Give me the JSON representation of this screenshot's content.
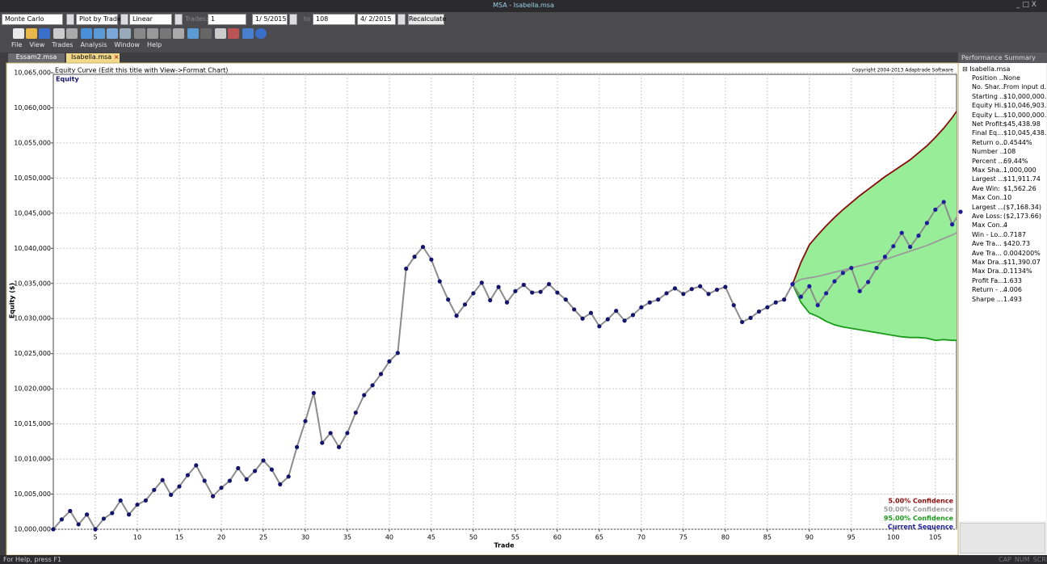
{
  "window": {
    "title": "MSA - Isabella.msa",
    "toolbar": {
      "mode": "Monte Carlo",
      "plot": "Plot by Trade",
      "scale": "Linear",
      "trades_label": "Trades:",
      "trades_from": "1",
      "date_from": "1/ 5/2015",
      "to_label": "to",
      "trades_to": "108",
      "date_to": "4/ 2/2015",
      "button": "Recalculate"
    },
    "menu": [
      "File",
      "View",
      "Trades",
      "Analysis",
      "Window",
      "Help"
    ],
    "tabs": [
      "Essam2.msa",
      "Isabella.msa"
    ]
  },
  "chart_data": {
    "type": "line",
    "title": "Equity Curve (Edit this title with View->Format Chart)",
    "copyright": "Copyright 2004-2013 Adaptrade Software",
    "xlabel": "Trade",
    "ylabel": "Equity ($)",
    "xlim": [
      0,
      108
    ],
    "ylim": [
      10000000,
      10065000
    ],
    "xticks": [
      5,
      10,
      15,
      20,
      25,
      30,
      35,
      40,
      45,
      50,
      55,
      60,
      65,
      70,
      75,
      80,
      85,
      90,
      95,
      100,
      105
    ],
    "yticks": [
      {
        "value": 10000000,
        "label": "10,000,000"
      },
      {
        "value": 10005000,
        "label": "10,005,000"
      },
      {
        "value": 10010000,
        "label": "10,010,000"
      },
      {
        "value": 10015000,
        "label": "10,015,000"
      },
      {
        "value": 10020000,
        "label": "10,020,000"
      },
      {
        "value": 10025000,
        "label": "10,025,000"
      },
      {
        "value": 10030000,
        "label": "10,030,000"
      },
      {
        "value": 10035000,
        "label": "10,035,000"
      },
      {
        "value": 10040000,
        "label": "10,040,000"
      },
      {
        "value": 10045000,
        "label": "10,045,000"
      },
      {
        "value": 10050000,
        "label": "10,050,000"
      },
      {
        "value": 10055000,
        "label": "10,055,000"
      },
      {
        "value": 10060000,
        "label": "10,060,000"
      },
      {
        "value": 10065000,
        "label": "10,065,000"
      }
    ],
    "grid": true,
    "band_fill": "#98ee98",
    "series": [
      {
        "name": "Equity",
        "color": "#8c8c8c",
        "marker_color": "#14146e",
        "x": [
          0,
          1,
          2,
          3,
          4,
          5,
          6,
          7,
          8,
          9,
          10,
          11,
          12,
          13,
          14,
          15,
          16,
          17,
          18,
          19,
          20,
          21,
          22,
          23,
          24,
          25,
          26,
          27,
          28,
          29,
          30,
          31,
          32,
          33,
          34,
          35,
          36,
          37,
          38,
          39,
          40,
          41,
          42,
          43,
          44,
          45,
          46,
          47,
          48,
          49,
          50,
          51,
          52,
          53,
          54,
          55,
          56,
          57,
          58,
          59,
          60,
          61,
          62,
          63,
          64,
          65,
          66,
          67,
          68,
          69,
          70,
          71,
          72,
          73,
          74,
          75,
          76,
          77,
          78,
          79,
          80,
          81,
          82,
          83,
          84,
          85,
          86,
          87,
          88
        ],
        "values": [
          10000000,
          10001400,
          10002600,
          10000700,
          10002100,
          10000000,
          10001500,
          10002300,
          10004100,
          10002100,
          10003500,
          10004100,
          10005600,
          10007000,
          10004900,
          10006100,
          10007700,
          10009100,
          10006900,
          10004700,
          10005900,
          10006900,
          10008700,
          10007100,
          10008300,
          10009800,
          10008500,
          10006400,
          10007500,
          10011700,
          10015400,
          10019400,
          10012300,
          10013700,
          10011700,
          10013700,
          10016600,
          10019100,
          10020500,
          10022100,
          10023900,
          10025100,
          10037100,
          10038800,
          10040200,
          10038400,
          10035300,
          10032700,
          10030400,
          10032000,
          10033600,
          10035100,
          10032600,
          10034500,
          10032300,
          10033900,
          10034800,
          10033700,
          10033800,
          10034900,
          10033700,
          10032700,
          10031300,
          10030000,
          10030800,
          10028900,
          10029900,
          10031100,
          10029700,
          10030500,
          10031600,
          10032300,
          10032700,
          10033600,
          10034300,
          10033500,
          10034200,
          10034600,
          10033500,
          10034100,
          10034500,
          10031900,
          10029500,
          10030100,
          10031000,
          10031600,
          10032300,
          10032700,
          10034900
        ]
      },
      {
        "name": "5.00% Confidence",
        "color": "#8b0a0a",
        "x": [
          88,
          89,
          90,
          91,
          92,
          93,
          94,
          95,
          96,
          97,
          98,
          99,
          100,
          101,
          102,
          103,
          104,
          105,
          106,
          107,
          108
        ],
        "values": [
          10034900,
          10038000,
          10040500,
          10041900,
          10043200,
          10044400,
          10045500,
          10046500,
          10047500,
          10048400,
          10049300,
          10050200,
          10051000,
          10051800,
          10052600,
          10053600,
          10054600,
          10055800,
          10057100,
          10058600,
          10060300
        ]
      },
      {
        "name": "50.00% Confidence",
        "color": "#9a9a9a",
        "x": [
          88,
          89,
          90,
          91,
          92,
          93,
          94,
          95,
          96,
          97,
          98,
          99,
          100,
          101,
          102,
          103,
          104,
          105,
          106,
          107,
          108
        ],
        "values": [
          10034900,
          10035600,
          10035800,
          10036000,
          10036300,
          10036600,
          10036900,
          10037200,
          10037500,
          10037800,
          10038100,
          10038400,
          10038800,
          10039200,
          10039600,
          10040000,
          10040400,
          10040900,
          10041400,
          10041900,
          10042500
        ]
      },
      {
        "name": "95.00% Confidence",
        "color": "#1a9a1a",
        "x": [
          88,
          89,
          90,
          91,
          92,
          93,
          94,
          95,
          96,
          97,
          98,
          99,
          100,
          101,
          102,
          103,
          104,
          105,
          106,
          107,
          108
        ],
        "values": [
          10034900,
          10032300,
          10030800,
          10030300,
          10029600,
          10029100,
          10028800,
          10028600,
          10028400,
          10028200,
          10028000,
          10027800,
          10027600,
          10027400,
          10027300,
          10027300,
          10027200,
          10026900,
          10027000,
          10026900,
          10026900
        ]
      },
      {
        "name": "Current Sequence",
        "color": "#8c8c8c",
        "marker_color": "#1c1c9c",
        "x": [
          88,
          89,
          90,
          91,
          92,
          93,
          94,
          95,
          96,
          97,
          98,
          99,
          100,
          101,
          102,
          103,
          104,
          105,
          106,
          107,
          108
        ],
        "values": [
          10034900,
          10033100,
          10034600,
          10031900,
          10033600,
          10035300,
          10036500,
          10037200,
          10033900,
          10035200,
          10037200,
          10038800,
          10040300,
          10042200,
          10040200,
          10041800,
          10043600,
          10045500,
          10046600,
          10043400,
          10045200
        ]
      }
    ]
  },
  "performance_summary": {
    "title": "Performance Summary",
    "file": "Isabella.msa",
    "rows": [
      [
        "Position ...",
        "None"
      ],
      [
        "No. Shar...",
        "From input d..."
      ],
      [
        "Starting ...",
        "$10,000,000..."
      ],
      [
        "Equity Hi...",
        "$10,046,903..."
      ],
      [
        "Equity L...",
        "$10,000,000..."
      ],
      [
        "Net Profit:",
        "$45,438.98"
      ],
      [
        "Final Eq...",
        "$10,045,438..."
      ],
      [
        "Return o...",
        "0.4544%"
      ],
      [
        "Number ...",
        "108"
      ],
      [
        "Percent ...",
        "69.44%"
      ],
      [
        "Max Sha...",
        "1,000,000"
      ],
      [
        "Largest ...",
        "$11,911.74"
      ],
      [
        "Ave Win:",
        "$1,562.26"
      ],
      [
        "Max Con...",
        "10"
      ],
      [
        "Largest ...",
        "($7,168.34)"
      ],
      [
        "Ave Loss:",
        "($2,173.66)"
      ],
      [
        "Max Con...",
        "4"
      ],
      [
        "Win - Lo...",
        "0.7187"
      ],
      [
        "Ave Tra...",
        "$420.73"
      ],
      [
        "Ave Tra...",
        "0.004200%"
      ],
      [
        "Max Dra...",
        "$11,390.07"
      ],
      [
        "Max Dra...",
        "0.1134%"
      ],
      [
        "Profit Fa...",
        "1.633"
      ],
      [
        "Return - ...",
        "4.006"
      ],
      [
        "Sharpe ...",
        "1.493"
      ]
    ]
  },
  "status_bar": {
    "help": "For Help, press F1",
    "indicators": [
      "CAP",
      "NUM",
      "SCRL"
    ]
  }
}
